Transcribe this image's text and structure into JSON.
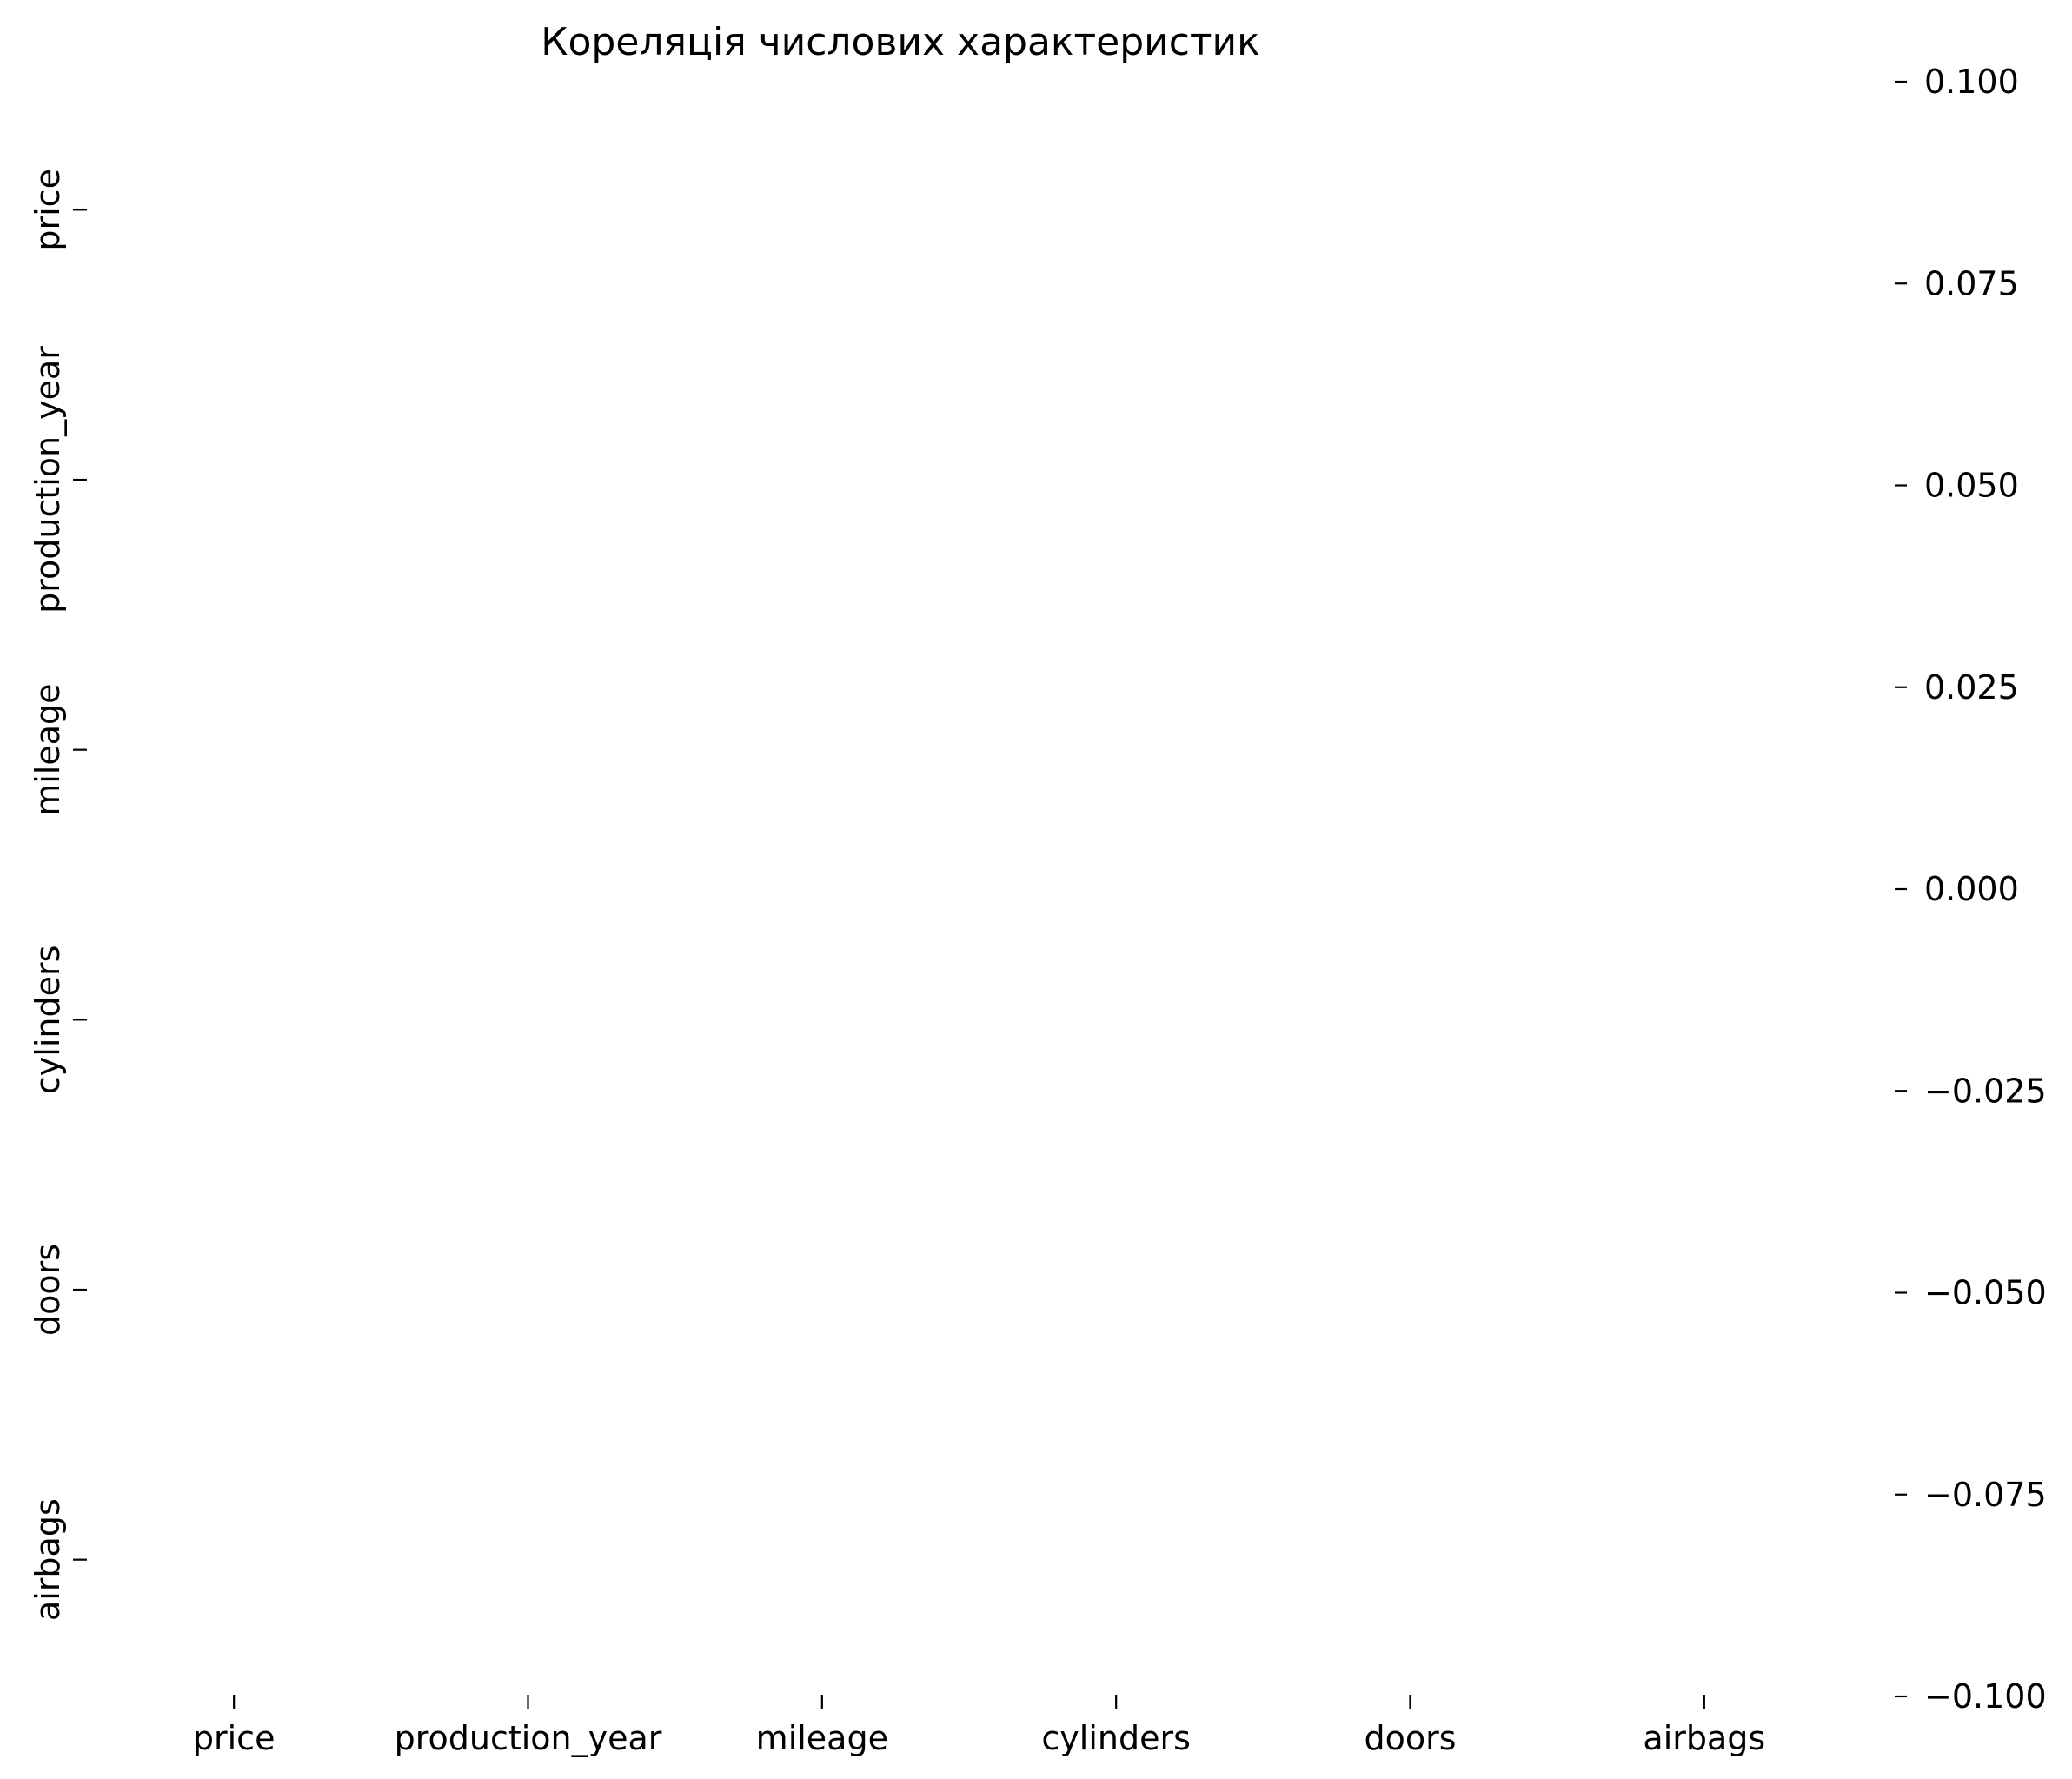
{
  "chart_data": {
    "type": "heatmap",
    "title": "Кореляція числових характеристик",
    "xlabel": "",
    "ylabel": "",
    "x_categories": [
      "price",
      "production_year",
      "mileage",
      "cylinders",
      "doors",
      "airbags"
    ],
    "y_categories": [
      "price",
      "production_year",
      "mileage",
      "cylinders",
      "doors",
      "airbags"
    ],
    "values": [],
    "colorbar": {
      "range": [
        -0.1,
        0.1
      ],
      "ticks": [
        0.1,
        0.075,
        0.05,
        0.025,
        0.0,
        -0.025,
        -0.05,
        -0.075,
        -0.1
      ],
      "tick_labels": [
        "0.100",
        "0.075",
        "0.050",
        "0.025",
        "0.000",
        "−0.025",
        "−0.050",
        "−0.075",
        "−0.100"
      ]
    },
    "grid": false,
    "legend": "none"
  }
}
